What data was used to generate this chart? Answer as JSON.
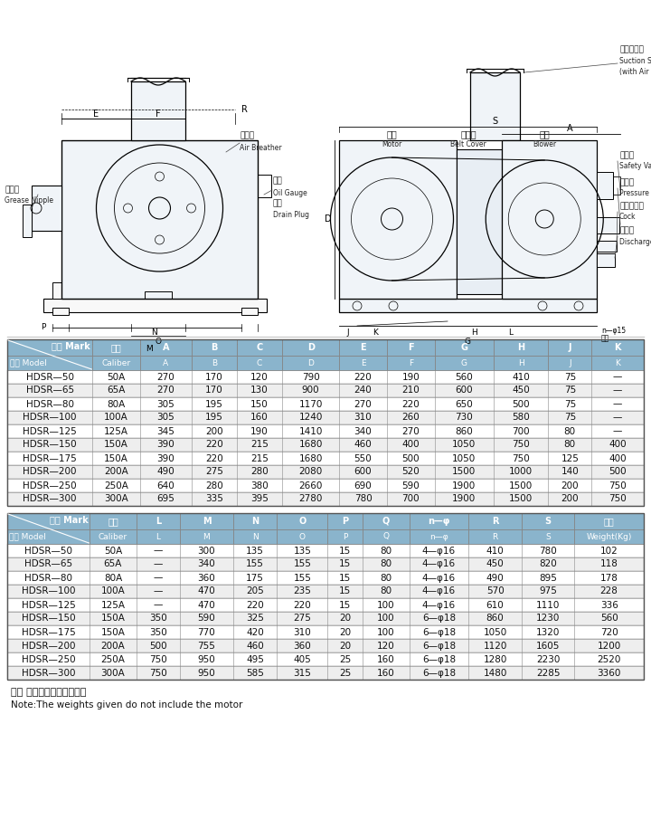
{
  "bg_color": "#ffffff",
  "header_bg1": "#8ab4cc",
  "header_bg2": "#9bbdd4",
  "row_odd": "#ffffff",
  "row_even": "#eeeeee",
  "border_color": "#999999",
  "text_dark": "#111111",
  "text_white": "#ffffff",
  "label_color": "#222222",
  "header1_row1": [
    "记号 Mark",
    "口径",
    "A",
    "B",
    "C",
    "D",
    "E",
    "F",
    "G",
    "H",
    "J",
    "K"
  ],
  "header1_row2": [
    "型式 Model",
    "Caliber",
    "A",
    "B",
    "C",
    "D",
    "E",
    "F",
    "G",
    "H",
    "J",
    "K"
  ],
  "table1_data": [
    [
      "HDSR—50",
      "50A",
      "270",
      "170",
      "120",
      "790",
      "220",
      "190",
      "560",
      "410",
      "75",
      "—"
    ],
    [
      "HDSR—65",
      "65A",
      "270",
      "170",
      "130",
      "900",
      "240",
      "210",
      "600",
      "450",
      "75",
      "—"
    ],
    [
      "HDSR—80",
      "80A",
      "305",
      "195",
      "150",
      "1170",
      "270",
      "220",
      "650",
      "500",
      "75",
      "—"
    ],
    [
      "HDSR—100",
      "100A",
      "305",
      "195",
      "160",
      "1240",
      "310",
      "260",
      "730",
      "580",
      "75",
      "—"
    ],
    [
      "HDSR—125",
      "125A",
      "345",
      "200",
      "190",
      "1410",
      "340",
      "270",
      "860",
      "700",
      "80",
      "—"
    ],
    [
      "HDSR—150",
      "150A",
      "390",
      "220",
      "215",
      "1680",
      "460",
      "400",
      "1050",
      "750",
      "80",
      "400"
    ],
    [
      "HDSR—175",
      "150A",
      "390",
      "220",
      "215",
      "1680",
      "550",
      "500",
      "1050",
      "750",
      "125",
      "400"
    ],
    [
      "HDSR—200",
      "200A",
      "490",
      "275",
      "280",
      "2080",
      "600",
      "520",
      "1500",
      "1000",
      "140",
      "500"
    ],
    [
      "HDSR—250",
      "250A",
      "640",
      "280",
      "380",
      "2660",
      "690",
      "590",
      "1900",
      "1500",
      "200",
      "750"
    ],
    [
      "HDSR—300",
      "300A",
      "695",
      "335",
      "395",
      "2780",
      "780",
      "700",
      "1900",
      "1500",
      "200",
      "750"
    ]
  ],
  "header2_row1": [
    "记号 Mark",
    "口径",
    "L",
    "M",
    "N",
    "O",
    "P",
    "Q",
    "n—φ",
    "R",
    "S",
    "重量"
  ],
  "header2_row2": [
    "型式 Model",
    "Caliber",
    "L",
    "M",
    "N",
    "O",
    "P",
    "Q",
    "n—φ",
    "R",
    "S",
    "Weight(Kg)"
  ],
  "table2_data": [
    [
      "HDSR—50",
      "50A",
      "—",
      "300",
      "135",
      "135",
      "15",
      "80",
      "4—φ16",
      "410",
      "780",
      "102"
    ],
    [
      "HDSR—65",
      "65A",
      "—",
      "340",
      "155",
      "155",
      "15",
      "80",
      "4—φ16",
      "450",
      "820",
      "118"
    ],
    [
      "HDSR—80",
      "80A",
      "—",
      "360",
      "175",
      "155",
      "15",
      "80",
      "4—φ16",
      "490",
      "895",
      "178"
    ],
    [
      "HDSR—100",
      "100A",
      "—",
      "470",
      "205",
      "235",
      "15",
      "80",
      "4—φ16",
      "570",
      "975",
      "228"
    ],
    [
      "HDSR—125",
      "125A",
      "—",
      "470",
      "220",
      "220",
      "15",
      "100",
      "4—φ16",
      "610",
      "1110",
      "336"
    ],
    [
      "HDSR—150",
      "150A",
      "350",
      "590",
      "325",
      "275",
      "20",
      "100",
      "6—φ18",
      "860",
      "1230",
      "560"
    ],
    [
      "HDSR—175",
      "150A",
      "350",
      "770",
      "420",
      "310",
      "20",
      "100",
      "6—φ18",
      "1050",
      "1320",
      "720"
    ],
    [
      "HDSR—200",
      "200A",
      "500",
      "755",
      "460",
      "360",
      "20",
      "120",
      "6—φ18",
      "1120",
      "1605",
      "1200"
    ],
    [
      "HDSR—250",
      "250A",
      "750",
      "950",
      "495",
      "405",
      "25",
      "160",
      "6—φ18",
      "1280",
      "2230",
      "2520"
    ],
    [
      "HDSR—300",
      "300A",
      "750",
      "950",
      "585",
      "315",
      "25",
      "160",
      "6—φ18",
      "1480",
      "2285",
      "3360"
    ]
  ],
  "note_cn": "注： 重量中不包括电机重量",
  "note_en": "Note:The weights given do not include the motor",
  "col_widths1": [
    75,
    42,
    45,
    40,
    40,
    50,
    42,
    42,
    52,
    48,
    38,
    46
  ],
  "col_widths2": [
    75,
    42,
    40,
    48,
    40,
    46,
    32,
    42,
    54,
    48,
    48,
    63
  ]
}
